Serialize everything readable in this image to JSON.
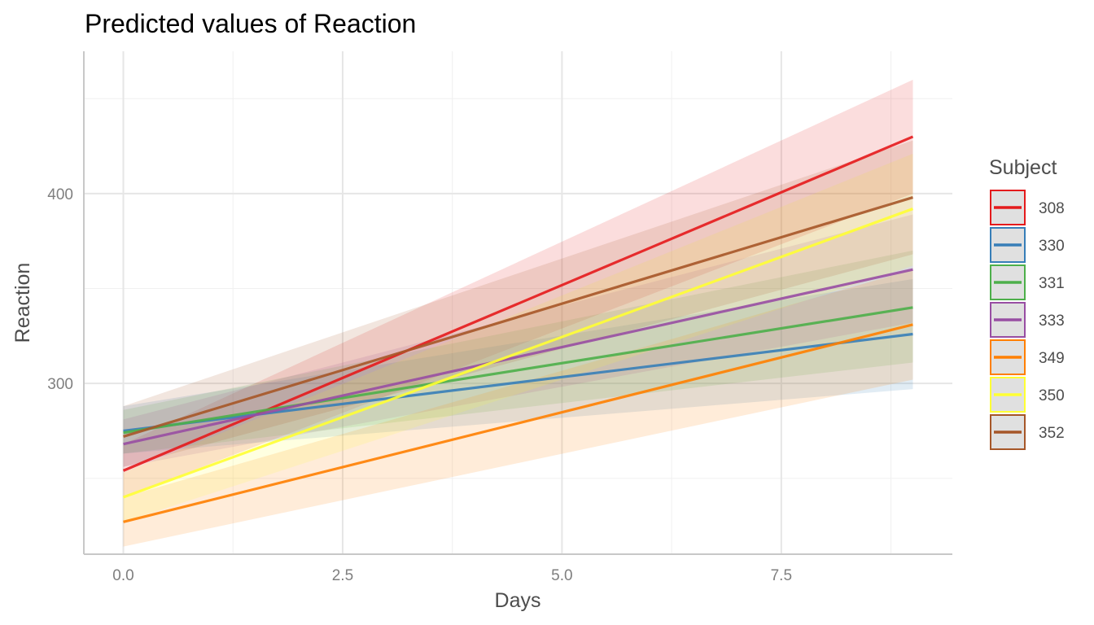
{
  "chart_data": {
    "type": "line",
    "title": "Predicted values of Reaction",
    "xlabel": "Days",
    "ylabel": "Reaction",
    "xlim": [
      -0.45,
      9.45
    ],
    "ylim": [
      210,
      475
    ],
    "x_ticks": [
      0,
      2.5,
      5,
      7.5
    ],
    "x_tick_labels": [
      "0.0",
      "2.5",
      "5.0",
      "7.5"
    ],
    "x_minor_ticks": [
      1.25,
      3.75,
      6.25,
      8.75
    ],
    "y_ticks": [
      300,
      400
    ],
    "y_tick_labels": [
      "300",
      "400"
    ],
    "y_minor_ticks": [
      250,
      350,
      450
    ],
    "grid": true,
    "legend_title": "Subject",
    "legend_position": "right",
    "x": [
      0,
      9
    ],
    "series": [
      {
        "name": "308",
        "color": "#e41a1c",
        "values": [
          254,
          430
        ],
        "lower": [
          240,
          400
        ],
        "upper": [
          268,
          460
        ]
      },
      {
        "name": "330",
        "color": "#377eb8",
        "values": [
          275,
          326
        ],
        "lower": [
          263,
          297
        ],
        "upper": [
          288,
          355
        ]
      },
      {
        "name": "331",
        "color": "#4daf4a",
        "values": [
          274,
          340
        ],
        "lower": [
          263,
          311
        ],
        "upper": [
          286,
          370
        ]
      },
      {
        "name": "333",
        "color": "#984ea3",
        "values": [
          268,
          360
        ],
        "lower": [
          256,
          332
        ],
        "upper": [
          281,
          389
        ]
      },
      {
        "name": "349",
        "color": "#ff7f00",
        "values": [
          227,
          331
        ],
        "lower": [
          214,
          302
        ],
        "upper": [
          240,
          360
        ]
      },
      {
        "name": "350",
        "color": "#ffff33",
        "values": [
          240,
          392
        ],
        "lower": [
          227,
          362
        ],
        "upper": [
          253,
          421
        ]
      },
      {
        "name": "352",
        "color": "#a65628",
        "values": [
          272,
          398
        ],
        "lower": [
          256,
          368
        ],
        "upper": [
          288,
          428
        ]
      }
    ]
  }
}
